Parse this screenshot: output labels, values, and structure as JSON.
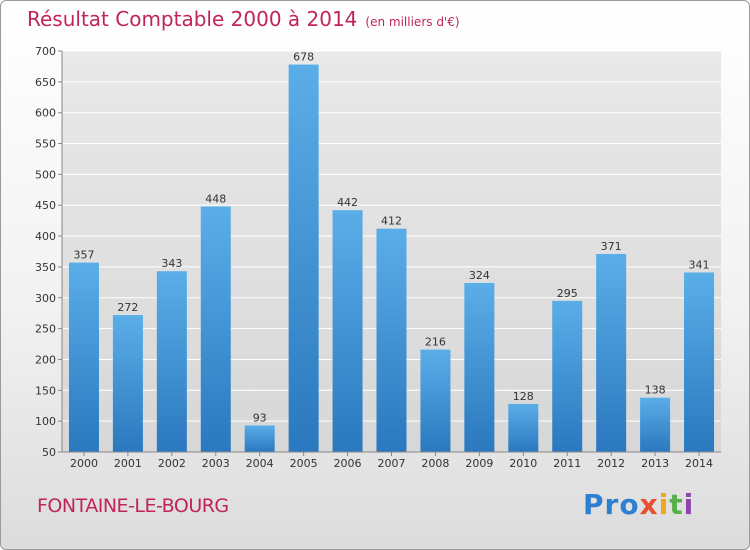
{
  "chart_data": {
    "type": "bar",
    "title": "Résultat Comptable 2000 à 2014",
    "subtitle": "(en milliers d'€)",
    "categories": [
      "2000",
      "2001",
      "2002",
      "2003",
      "2004",
      "2005",
      "2006",
      "2007",
      "2008",
      "2009",
      "2010",
      "2011",
      "2012",
      "2013",
      "2014"
    ],
    "values": [
      357,
      272,
      343,
      448,
      93,
      678,
      442,
      412,
      216,
      324,
      128,
      295,
      371,
      138,
      341
    ],
    "ylim": [
      50,
      700
    ],
    "yticks": [
      50,
      100,
      150,
      200,
      250,
      300,
      350,
      400,
      450,
      500,
      550,
      600,
      650,
      700
    ],
    "grid": true,
    "xlabel": "",
    "ylabel": "",
    "bar_color": "#3d92d8"
  },
  "footer": {
    "commune": "FONTAINE-LE-BOURG",
    "logo": [
      "Pro",
      "x",
      "i",
      "t",
      "i"
    ]
  }
}
